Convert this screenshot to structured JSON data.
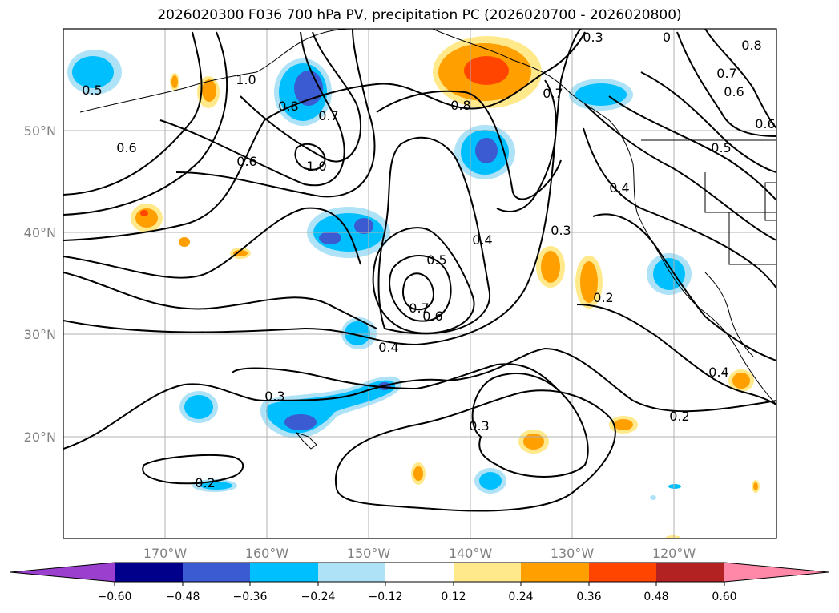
{
  "title": "2026020300 F036 700 hPa PV, precipitation PC (2026020700 - 2026020800)",
  "map": {
    "lat_labels": [
      "50°N",
      "40°N",
      "30°N",
      "20°N"
    ],
    "lon_labels": [
      "170°W",
      "160°W",
      "150°W",
      "140°W",
      "130°W",
      "120°W"
    ],
    "contour_labels": [
      "0.3",
      "0",
      "0.8",
      "1.0",
      "0.5",
      "0.8",
      "0.7",
      "0.7",
      "0.6",
      "0.6",
      "1.0",
      "0.8",
      "0.6",
      "0.5",
      "0.7",
      "0.4",
      "0.6",
      "0.5",
      "0.4",
      "0.3",
      "0.7",
      "0.6",
      "0.2",
      "0.4",
      "0.3",
      "0.3",
      "0.2",
      "0.2",
      "0.4"
    ]
  },
  "colorbar": {
    "tick_labels": [
      "−0.60",
      "−0.48",
      "−0.36",
      "−0.24",
      "−0.12",
      "0.12",
      "0.24",
      "0.36",
      "0.48",
      "0.60"
    ],
    "colors": [
      "#9b3fcf",
      "#00008b",
      "#3a5bd1",
      "#00bfff",
      "#aee2f7",
      "#ffffff",
      "#ffe98a",
      "#ff9f00",
      "#ff4500",
      "#b22222",
      "#ff88a8"
    ]
  }
}
